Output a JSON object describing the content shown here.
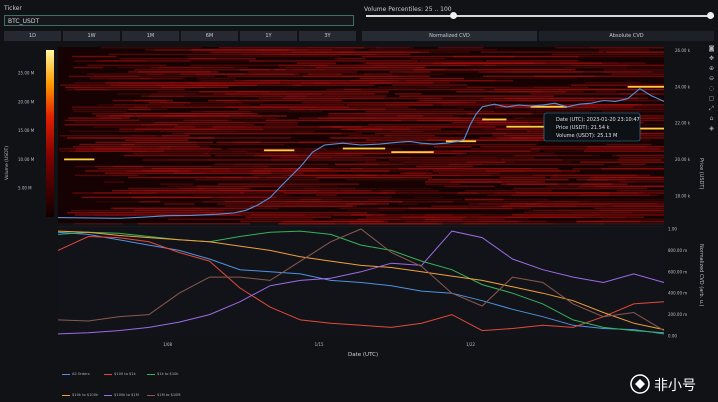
{
  "ticker": {
    "label": "Ticker",
    "value": "BTC_USDT"
  },
  "timeframes": [
    "1D",
    "1W",
    "1M",
    "6M",
    "1Y",
    "3Y"
  ],
  "volume_percentiles": {
    "label": "Volume Percentiles: 25 .. 100",
    "low": 25,
    "high": 100
  },
  "cvd_tabs": [
    "Normalized CVD",
    "Absolute CVD"
  ],
  "tooltip": {
    "date": "Date (UTC): 2023-01-20 23:10:47",
    "price": "Price (USDT): 21.54 k",
    "volume": "Volume (USDT): 25.13 M"
  },
  "colors": {
    "price": "#4f93e0",
    "bright": "#ffcf40",
    "accent": "#2f8c78"
  },
  "chart_data": [
    {
      "type": "heatmap",
      "xlabel": "",
      "ylabel": "Price (USDT)",
      "colorbar_label": "Volume (USDT)",
      "colorbar_ticks": [
        "5.00 M",
        "10.00 M",
        "15.00 M",
        "20.00 M",
        "25.00 M"
      ],
      "y_ticks": [
        "18.00 k",
        "20.00 k",
        "22.00 k",
        "24.00 k",
        "26.00 k"
      ],
      "ylim": [
        16500,
        26200
      ],
      "price_line": [
        [
          0,
          16800
        ],
        [
          0.05,
          16780
        ],
        [
          0.1,
          16760
        ],
        [
          0.14,
          16820
        ],
        [
          0.18,
          16900
        ],
        [
          0.22,
          16920
        ],
        [
          0.26,
          16980
        ],
        [
          0.29,
          17050
        ],
        [
          0.31,
          17200
        ],
        [
          0.33,
          17500
        ],
        [
          0.35,
          17900
        ],
        [
          0.37,
          18600
        ],
        [
          0.4,
          19600
        ],
        [
          0.42,
          20400
        ],
        [
          0.44,
          20800
        ],
        [
          0.47,
          20900
        ],
        [
          0.5,
          20800
        ],
        [
          0.53,
          20850
        ],
        [
          0.56,
          20950
        ],
        [
          0.58,
          21000
        ],
        [
          0.6,
          20900
        ],
        [
          0.62,
          20850
        ],
        [
          0.64,
          20900
        ],
        [
          0.66,
          21000
        ],
        [
          0.67,
          21100
        ],
        [
          0.68,
          21900
        ],
        [
          0.69,
          22500
        ],
        [
          0.7,
          22900
        ],
        [
          0.72,
          23050
        ],
        [
          0.74,
          22900
        ],
        [
          0.76,
          23000
        ],
        [
          0.78,
          22950
        ],
        [
          0.8,
          23000
        ],
        [
          0.82,
          23100
        ],
        [
          0.84,
          22900
        ],
        [
          0.86,
          23050
        ],
        [
          0.88,
          23100
        ],
        [
          0.9,
          23250
        ],
        [
          0.92,
          23200
        ],
        [
          0.94,
          23350
        ],
        [
          0.96,
          23900
        ],
        [
          0.98,
          23500
        ],
        [
          1,
          23200
        ]
      ],
      "bright_levels": [
        {
          "x0": 0.01,
          "x1": 0.06,
          "price": 20000
        },
        {
          "x0": 0.34,
          "x1": 0.39,
          "price": 20500
        },
        {
          "x0": 0.47,
          "x1": 0.54,
          "price": 20600
        },
        {
          "x0": 0.55,
          "x1": 0.62,
          "price": 20400
        },
        {
          "x0": 0.64,
          "x1": 0.69,
          "price": 21000
        },
        {
          "x0": 0.7,
          "x1": 0.74,
          "price": 22200
        },
        {
          "x0": 0.74,
          "x1": 0.9,
          "price": 21800
        },
        {
          "x0": 0.78,
          "x1": 0.84,
          "price": 22900
        },
        {
          "x0": 0.94,
          "x1": 1.0,
          "price": 24000
        },
        {
          "x0": 0.96,
          "x1": 1.0,
          "price": 21700
        }
      ]
    },
    {
      "type": "line",
      "xlabel": "Date (UTC)",
      "ylabel": "Normalized CVD (arb. u.)",
      "x_ticks": [
        "1/08",
        "1/15",
        "1/22"
      ],
      "y_ticks": [
        "0.00",
        "200.00 m",
        "400.00 m",
        "600.00 m",
        "800.00 m",
        "1.00"
      ],
      "ylim": [
        0,
        1
      ],
      "series": [
        {
          "name": "All Orders",
          "color": "#4f93e0",
          "values": [
            [
              0,
              0.97
            ],
            [
              0.05,
              0.95
            ],
            [
              0.1,
              0.9
            ],
            [
              0.15,
              0.85
            ],
            [
              0.2,
              0.8
            ],
            [
              0.25,
              0.72
            ],
            [
              0.3,
              0.62
            ],
            [
              0.35,
              0.6
            ],
            [
              0.4,
              0.58
            ],
            [
              0.45,
              0.52
            ],
            [
              0.5,
              0.5
            ],
            [
              0.55,
              0.47
            ],
            [
              0.6,
              0.42
            ],
            [
              0.65,
              0.4
            ],
            [
              0.7,
              0.33
            ],
            [
              0.75,
              0.25
            ],
            [
              0.8,
              0.18
            ],
            [
              0.85,
              0.1
            ],
            [
              0.9,
              0.07
            ],
            [
              0.95,
              0.06
            ],
            [
              1,
              0.02
            ]
          ]
        },
        {
          "name": "$100 to $1k",
          "color": "#e24a3b",
          "values": [
            [
              0,
              0.8
            ],
            [
              0.05,
              0.93
            ],
            [
              0.1,
              0.92
            ],
            [
              0.15,
              0.88
            ],
            [
              0.2,
              0.78
            ],
            [
              0.25,
              0.7
            ],
            [
              0.3,
              0.45
            ],
            [
              0.35,
              0.27
            ],
            [
              0.4,
              0.15
            ],
            [
              0.45,
              0.12
            ],
            [
              0.5,
              0.1
            ],
            [
              0.55,
              0.08
            ],
            [
              0.6,
              0.12
            ],
            [
              0.65,
              0.2
            ],
            [
              0.7,
              0.05
            ],
            [
              0.75,
              0.07
            ],
            [
              0.8,
              0.1
            ],
            [
              0.85,
              0.08
            ],
            [
              0.9,
              0.18
            ],
            [
              0.95,
              0.3
            ],
            [
              1,
              0.32
            ]
          ]
        },
        {
          "name": "$1k to $10k",
          "color": "#35b35a",
          "values": [
            [
              0,
              0.95
            ],
            [
              0.05,
              0.97
            ],
            [
              0.1,
              0.96
            ],
            [
              0.15,
              0.93
            ],
            [
              0.2,
              0.9
            ],
            [
              0.25,
              0.88
            ],
            [
              0.3,
              0.93
            ],
            [
              0.35,
              0.97
            ],
            [
              0.4,
              0.98
            ],
            [
              0.45,
              0.95
            ],
            [
              0.5,
              0.85
            ],
            [
              0.55,
              0.8
            ],
            [
              0.6,
              0.7
            ],
            [
              0.65,
              0.62
            ],
            [
              0.7,
              0.48
            ],
            [
              0.75,
              0.4
            ],
            [
              0.8,
              0.3
            ],
            [
              0.85,
              0.15
            ],
            [
              0.9,
              0.08
            ],
            [
              0.95,
              0.05
            ],
            [
              1,
              0.03
            ]
          ]
        },
        {
          "name": "$10k to $100k",
          "color": "#f0a03a",
          "values": [
            [
              0,
              0.98
            ],
            [
              0.05,
              0.97
            ],
            [
              0.1,
              0.94
            ],
            [
              0.15,
              0.92
            ],
            [
              0.2,
              0.9
            ],
            [
              0.25,
              0.88
            ],
            [
              0.3,
              0.84
            ],
            [
              0.35,
              0.8
            ],
            [
              0.4,
              0.74
            ],
            [
              0.45,
              0.7
            ],
            [
              0.5,
              0.66
            ],
            [
              0.55,
              0.64
            ],
            [
              0.6,
              0.6
            ],
            [
              0.65,
              0.56
            ],
            [
              0.7,
              0.52
            ],
            [
              0.75,
              0.46
            ],
            [
              0.8,
              0.4
            ],
            [
              0.85,
              0.33
            ],
            [
              0.9,
              0.22
            ],
            [
              0.95,
              0.12
            ],
            [
              1,
              0.06
            ]
          ]
        },
        {
          "name": "$100k to $1M",
          "color": "#9c6be6",
          "values": [
            [
              0,
              0.02
            ],
            [
              0.05,
              0.03
            ],
            [
              0.1,
              0.05
            ],
            [
              0.15,
              0.08
            ],
            [
              0.2,
              0.13
            ],
            [
              0.25,
              0.2
            ],
            [
              0.3,
              0.32
            ],
            [
              0.35,
              0.47
            ],
            [
              0.4,
              0.52
            ],
            [
              0.45,
              0.54
            ],
            [
              0.5,
              0.6
            ],
            [
              0.55,
              0.68
            ],
            [
              0.6,
              0.66
            ],
            [
              0.65,
              0.98
            ],
            [
              0.7,
              0.92
            ],
            [
              0.75,
              0.72
            ],
            [
              0.8,
              0.62
            ],
            [
              0.85,
              0.55
            ],
            [
              0.9,
              0.5
            ],
            [
              0.95,
              0.58
            ],
            [
              1,
              0.5
            ]
          ]
        },
        {
          "name": "$1M to $10M",
          "color": "#8b5a4e",
          "values": [
            [
              0,
              0.15
            ],
            [
              0.05,
              0.14
            ],
            [
              0.1,
              0.18
            ],
            [
              0.15,
              0.2
            ],
            [
              0.2,
              0.4
            ],
            [
              0.25,
              0.55
            ],
            [
              0.3,
              0.55
            ],
            [
              0.35,
              0.52
            ],
            [
              0.4,
              0.7
            ],
            [
              0.45,
              0.88
            ],
            [
              0.5,
              1.0
            ],
            [
              0.55,
              0.78
            ],
            [
              0.6,
              0.65
            ],
            [
              0.65,
              0.4
            ],
            [
              0.7,
              0.28
            ],
            [
              0.75,
              0.55
            ],
            [
              0.8,
              0.5
            ],
            [
              0.85,
              0.3
            ],
            [
              0.9,
              0.18
            ],
            [
              0.95,
              0.22
            ],
            [
              1,
              0.05
            ]
          ]
        }
      ]
    }
  ]
}
